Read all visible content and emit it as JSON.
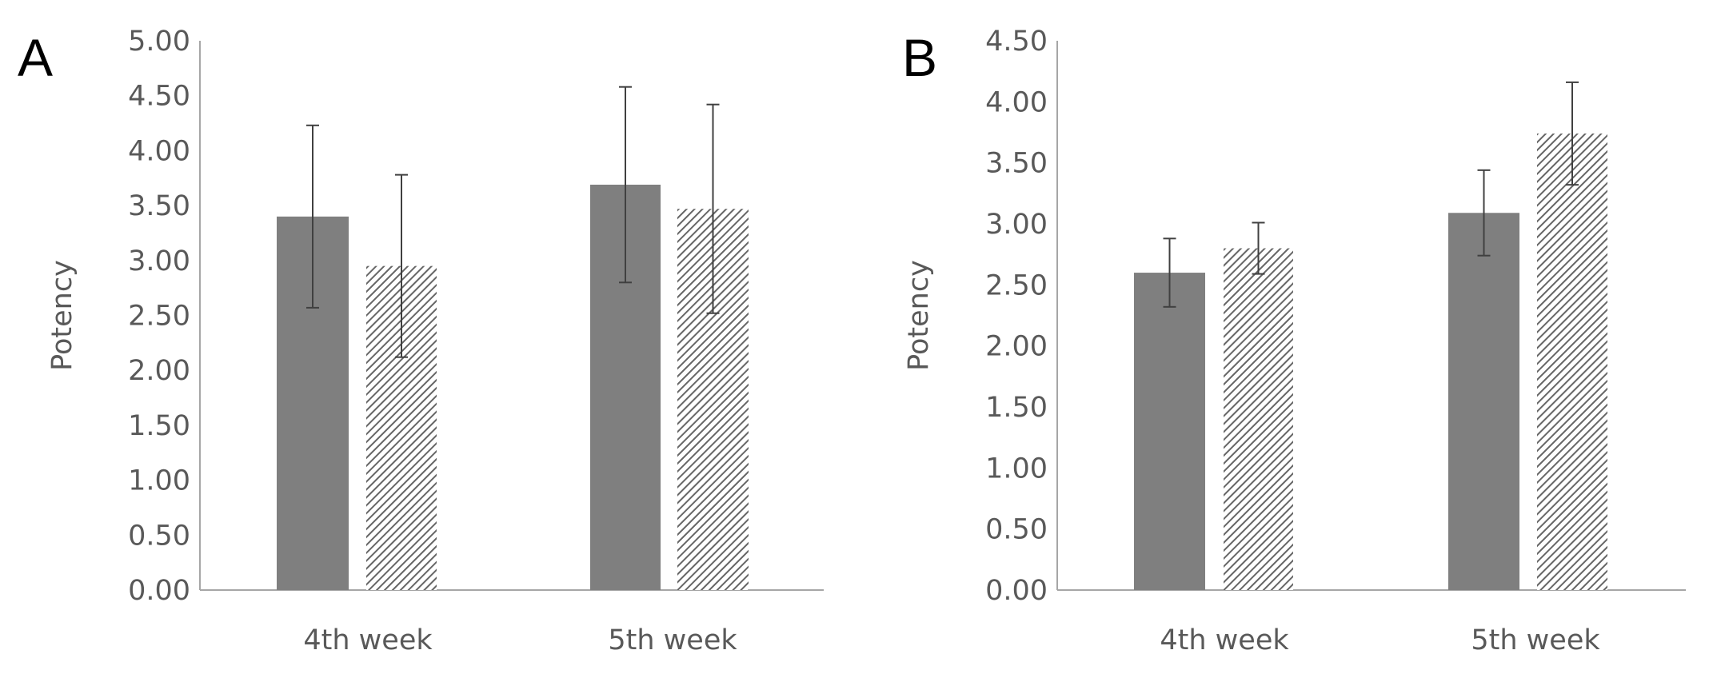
{
  "colors": {
    "solid_bar": "#7f7f7f",
    "hatch_line": "#666666",
    "hatch_bg": "#ffffff",
    "axis": "#a6a6a6",
    "error_bar": "#404040",
    "text": "#595959"
  },
  "chart_data": [
    {
      "panel_label": "A",
      "type": "bar",
      "ylabel": "Potency",
      "xlabel": "",
      "categories": [
        "4th week",
        "5th week"
      ],
      "ylim": [
        0,
        5
      ],
      "yticks": [
        "0.00",
        "0.50",
        "1.00",
        "1.50",
        "2.00",
        "2.50",
        "3.00",
        "3.50",
        "4.00",
        "4.50",
        "5.00"
      ],
      "grid": false,
      "legend": "none",
      "series": [
        {
          "style": "solid",
          "values": [
            3.4,
            3.69
          ],
          "errors": [
            0.83,
            0.89
          ]
        },
        {
          "style": "hatched",
          "values": [
            2.95,
            3.47
          ],
          "errors": [
            0.83,
            0.95
          ]
        }
      ]
    },
    {
      "panel_label": "B",
      "type": "bar",
      "ylabel": "Potency",
      "xlabel": "",
      "categories": [
        "4th week",
        "5th week"
      ],
      "ylim": [
        0,
        4.5
      ],
      "yticks": [
        "0.00",
        "0.50",
        "1.00",
        "1.50",
        "2.00",
        "2.50",
        "3.00",
        "3.50",
        "4.00",
        "4.50"
      ],
      "grid": false,
      "legend": "none",
      "series": [
        {
          "style": "solid",
          "values": [
            2.6,
            3.09
          ],
          "errors": [
            0.28,
            0.35
          ]
        },
        {
          "style": "hatched",
          "values": [
            2.8,
            3.74
          ],
          "errors": [
            0.21,
            0.42
          ]
        }
      ]
    }
  ]
}
